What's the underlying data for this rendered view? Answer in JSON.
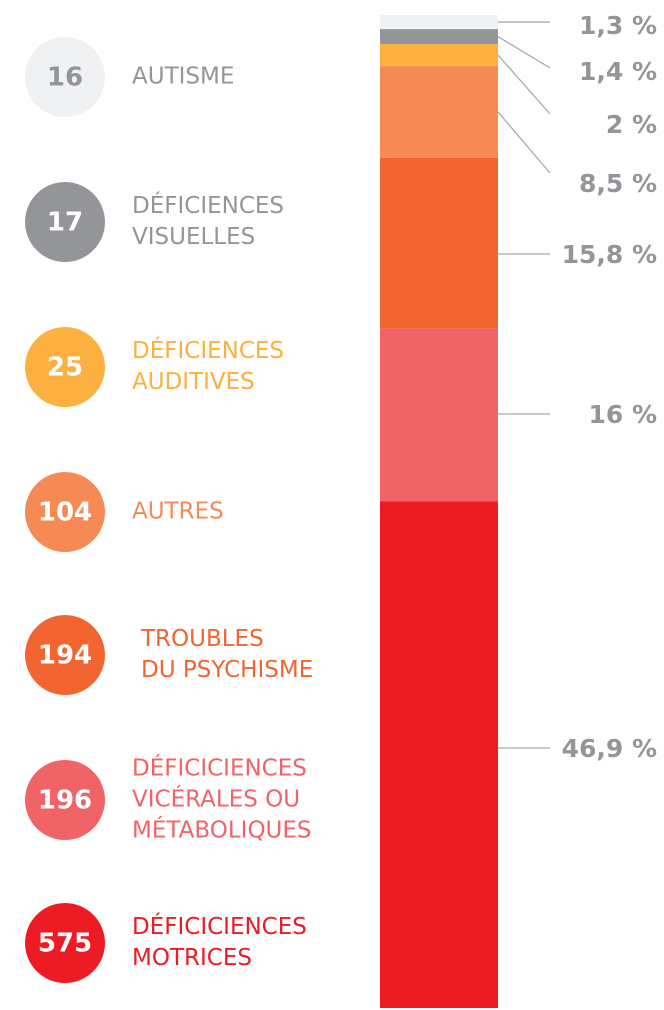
{
  "chart_data": {
    "type": "stacked-bar",
    "categories": [
      [
        "AUTISME"
      ],
      [
        "DÉFICIENCES",
        "VISUELLES"
      ],
      [
        "DÉFICIENCES",
        "AUDITIVES"
      ],
      [
        "AUTRES"
      ],
      [
        "TROUBLES",
        "DU PSYCHISME"
      ],
      [
        "DÉFICICIENCES",
        "VICÉRALES  OU",
        "MÉTABOLIQUES"
      ],
      [
        "DÉFICICIENCES",
        "MOTRICES"
      ]
    ],
    "values": [
      16,
      17,
      25,
      104,
      194,
      196,
      575
    ],
    "percent_labels": [
      "1,3 %",
      "1,4 %",
      "2 %",
      "8,5 %",
      "15,8 %",
      "16 %",
      "46,9 %"
    ],
    "colors": [
      "#f0f1f3",
      "#939598",
      "#fbb040",
      "#f58a55",
      "#f26531",
      "#f06467",
      "#ed1c24"
    ]
  }
}
